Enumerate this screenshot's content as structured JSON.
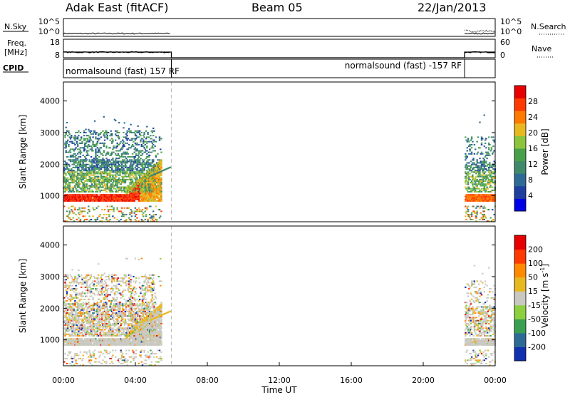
{
  "header": {
    "title_left": "Adak East (fitACF)",
    "title_center": "Beam 05",
    "title_right": "22/Jan/2013"
  },
  "strip_panels": {
    "nsky_label": "N.Sky",
    "nsky_ticks": [
      "10^5",
      "10^0"
    ],
    "nsearch_label": "N.Search",
    "nsearch_ticks": [
      "10^5",
      "10^0"
    ],
    "freq_label_line1": "Freq.",
    "freq_label_line2": "[MHz]",
    "freq_ticks": [
      "18",
      "8"
    ],
    "nave_label": "Nave",
    "nave_ticks": [
      "60",
      "0"
    ],
    "cpid_label": "CPID",
    "cpid_segments": [
      {
        "text": "normalsound (fast) 157 RF",
        "start_h": 0.0,
        "end_h": 6.0
      },
      {
        "text": "normalsound (fast) -157 RF",
        "start_h": 22.3,
        "end_h": 24.0
      }
    ]
  },
  "chart_data": [
    {
      "type": "heatmap",
      "panel": "power",
      "ylabel": "Slant Range [km]",
      "xlabel": "",
      "xlim": [
        0,
        24
      ],
      "ylim": [
        180,
        4600
      ],
      "yticks": [
        1000,
        2000,
        3000,
        4000
      ],
      "colorbar_label": "Power [dB]",
      "colorbar_ticks": [
        "28",
        "24",
        "20",
        "16",
        "12",
        "8",
        "4"
      ],
      "colorscale": [
        "#0000e6",
        "#1f3fa0",
        "#2e6a96",
        "#3f8a6a",
        "#49a04a",
        "#8cc43c",
        "#e8b820",
        "#ff7a00",
        "#ff3a00",
        "#e60000"
      ],
      "data_gaps_h": [
        [
          6.0,
          22.3
        ]
      ],
      "features": [
        {
          "desc": "strong echo band",
          "range_km": [
            900,
            1100
          ],
          "time_h": [
            0,
            4.5
          ],
          "power_db": 28
        },
        {
          "desc": "rising echo trace",
          "range_km": [
            1100,
            2000
          ],
          "time_h": [
            3.5,
            5.0
          ],
          "power_db": 20
        },
        {
          "desc": "moderate scatter",
          "range_km": [
            1400,
            2900
          ],
          "time_h": [
            0,
            5.2
          ],
          "power_db": 10
        },
        {
          "desc": "late-day echo band",
          "range_km": [
            850,
            1050
          ],
          "time_h": [
            22.3,
            24
          ],
          "power_db": 26
        }
      ]
    },
    {
      "type": "heatmap",
      "panel": "velocity",
      "ylabel": "Slant Range [km]",
      "xlabel": "Time UT",
      "xlim": [
        0,
        24
      ],
      "ylim": [
        180,
        4600
      ],
      "yticks": [
        1000,
        2000,
        3000,
        4000
      ],
      "xticks": [
        "00:00",
        "04:00",
        "08:00",
        "12:00",
        "16:00",
        "20:00",
        "00:00"
      ],
      "colorbar_label": "Velocity [m s",
      "colorbar_label_sup": "-1",
      "colorbar_label_end": "]",
      "colorbar_ticks": [
        "200",
        "100",
        "50",
        "15",
        "-15",
        "-50",
        "-100",
        "-200"
      ],
      "colorscale": [
        "#1030b0",
        "#2e6a96",
        "#38a050",
        "#8cd040",
        "#c8c8c0",
        "#e8b820",
        "#ff8a00",
        "#ff3a00",
        "#e60000"
      ],
      "data_gaps_h": [
        [
          6.0,
          22.3
        ]
      ],
      "features": [
        {
          "desc": "ground scatter (near-zero velocity)",
          "range_km": [
            850,
            1200
          ],
          "time_h": [
            0,
            4.5
          ],
          "velocity_ms": 0
        },
        {
          "desc": "mixed velocity scatter",
          "range_km": [
            1400,
            3400
          ],
          "time_h": [
            0,
            5.2
          ],
          "velocity_ms": 0
        },
        {
          "desc": "late-day ground scatter",
          "range_km": [
            850,
            1100
          ],
          "time_h": [
            22.3,
            24
          ],
          "velocity_ms": 0
        }
      ]
    }
  ]
}
